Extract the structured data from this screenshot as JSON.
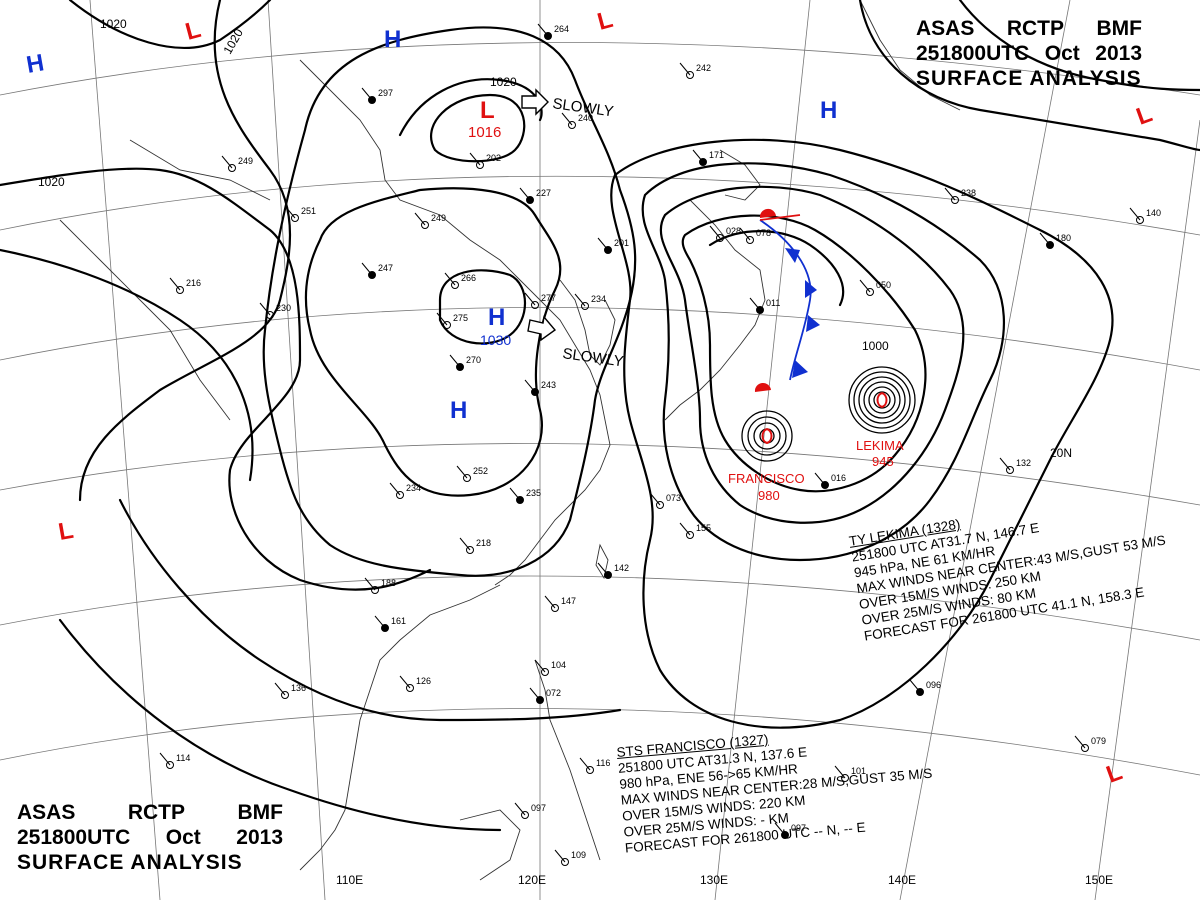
{
  "header": {
    "agency": [
      "ASAS",
      "RCTP",
      "BMF"
    ],
    "time": [
      "251800UTC",
      "Oct",
      "2013"
    ],
    "product": "SURFACE ANALYSIS"
  },
  "isobar_labels": [
    "1020",
    "1020",
    "1020",
    "1020",
    "1000"
  ],
  "pressure_centers": [
    {
      "kind": "H",
      "value": "",
      "color": "#1030d0"
    },
    {
      "kind": "H",
      "value": "",
      "color": "#1030d0"
    },
    {
      "kind": "H",
      "value": "",
      "color": "#1030d0"
    },
    {
      "kind": "H",
      "value": "1030",
      "color": "#1030d0"
    },
    {
      "kind": "H",
      "value": "",
      "color": "#1030d0"
    },
    {
      "kind": "L",
      "value": "1016",
      "color": "#e01010"
    },
    {
      "kind": "L",
      "value": "",
      "color": "#e01010"
    },
    {
      "kind": "L",
      "value": "",
      "color": "#e01010"
    },
    {
      "kind": "L",
      "value": "",
      "color": "#e01010"
    },
    {
      "kind": "L",
      "value": "",
      "color": "#e01010"
    },
    {
      "kind": "L",
      "value": "",
      "color": "#e01010"
    }
  ],
  "movement": [
    "SLOWLY",
    "SLOWLY"
  ],
  "cyclones": [
    {
      "name": "LEKIMA",
      "pressure": "945",
      "color": "#e01010"
    },
    {
      "name": "FRANCISCO",
      "pressure": "980",
      "color": "#e01010"
    }
  ],
  "longitude_labels": [
    "110E",
    "120E",
    "130E",
    "140E",
    "150E"
  ],
  "latitude_labels": [
    "20N"
  ],
  "advisories": {
    "lekima": [
      "TY  LEKIMA  (1328)",
      "251800 UTC  AT31.7 N, 146.7 E",
      "945 hPa, NE  61 KM/HR",
      "MAX WINDS NEAR CENTER:43 M/S,GUST 53 M/S",
      "OVER 15M/S WINDS: 250 KM",
      "OVER 25M/S WINDS: 80 KM",
      "FORECAST FOR 261800 UTC 41.1 N, 158.3 E"
    ],
    "francisco": [
      "STS  FRANCISCO  (1327)",
      "251800 UTC  AT31.3 N, 137.6 E",
      "980 hPa, ENE  56->65 KM/HR",
      "MAX WINDS NEAR CENTER:28 M/S,GUST 35 M/S",
      "OVER 15M/S WINDS: 220 KM",
      "OVER 25M/S WINDS: - KM",
      "FORECAST FOR 261800 UTC -- N, -- E"
    ]
  },
  "station_values": [
    "264",
    "240",
    "242",
    "297",
    "249",
    "202",
    "227",
    "251",
    "249",
    "247",
    "266",
    "275",
    "270",
    "277",
    "234",
    "201",
    "216",
    "230",
    "243",
    "252",
    "234",
    "235",
    "218",
    "188",
    "161",
    "136",
    "126",
    "171",
    "114",
    "104",
    "072",
    "097",
    "109",
    "097",
    "101",
    "116",
    "096",
    "079",
    "155",
    "142",
    "147",
    "073",
    "016",
    "050",
    "078",
    "011",
    "028",
    "238",
    "180",
    "140",
    "132"
  ],
  "colors": {
    "isobar": "#000000",
    "coast": "#333333",
    "grid": "#555555",
    "high": "#1030d0",
    "low": "#e01010",
    "cold_front": "#1030d0",
    "warm_front": "#e01010"
  }
}
